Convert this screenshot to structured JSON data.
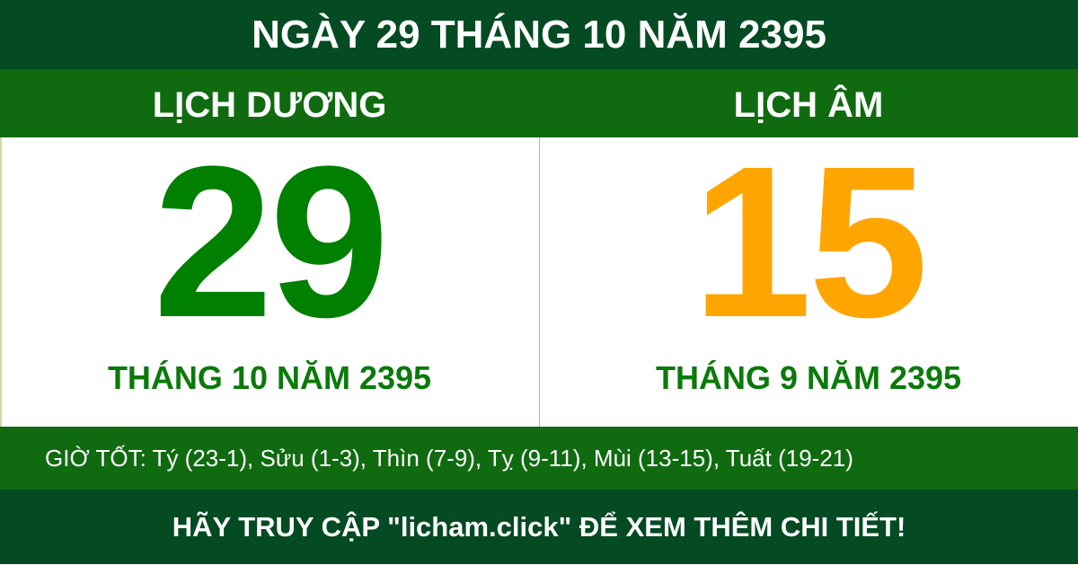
{
  "header": {
    "title": "NGÀY 29 THÁNG 10 NĂM 2395"
  },
  "solar": {
    "label": "LỊCH DƯƠNG",
    "day": "29",
    "month_year": "THÁNG 10 NĂM 2395",
    "color": "#008000"
  },
  "lunar": {
    "label": "LỊCH ÂM",
    "day": "15",
    "month_year": "THÁNG 9 NĂM 2395",
    "color": "#FFA500"
  },
  "good_hours": "GIỜ TỐT: Tý (23-1), Sửu (1-3), Thìn (7-9), Tỵ (9-11), Mùi (13-15), Tuất (19-21)",
  "footer": {
    "text": "HÃY TRUY CẬP \"licham.click\" ĐỂ XEM THÊM CHI TIẾT!"
  },
  "colors": {
    "dark_green": "#044a22",
    "green": "#106b10"
  }
}
